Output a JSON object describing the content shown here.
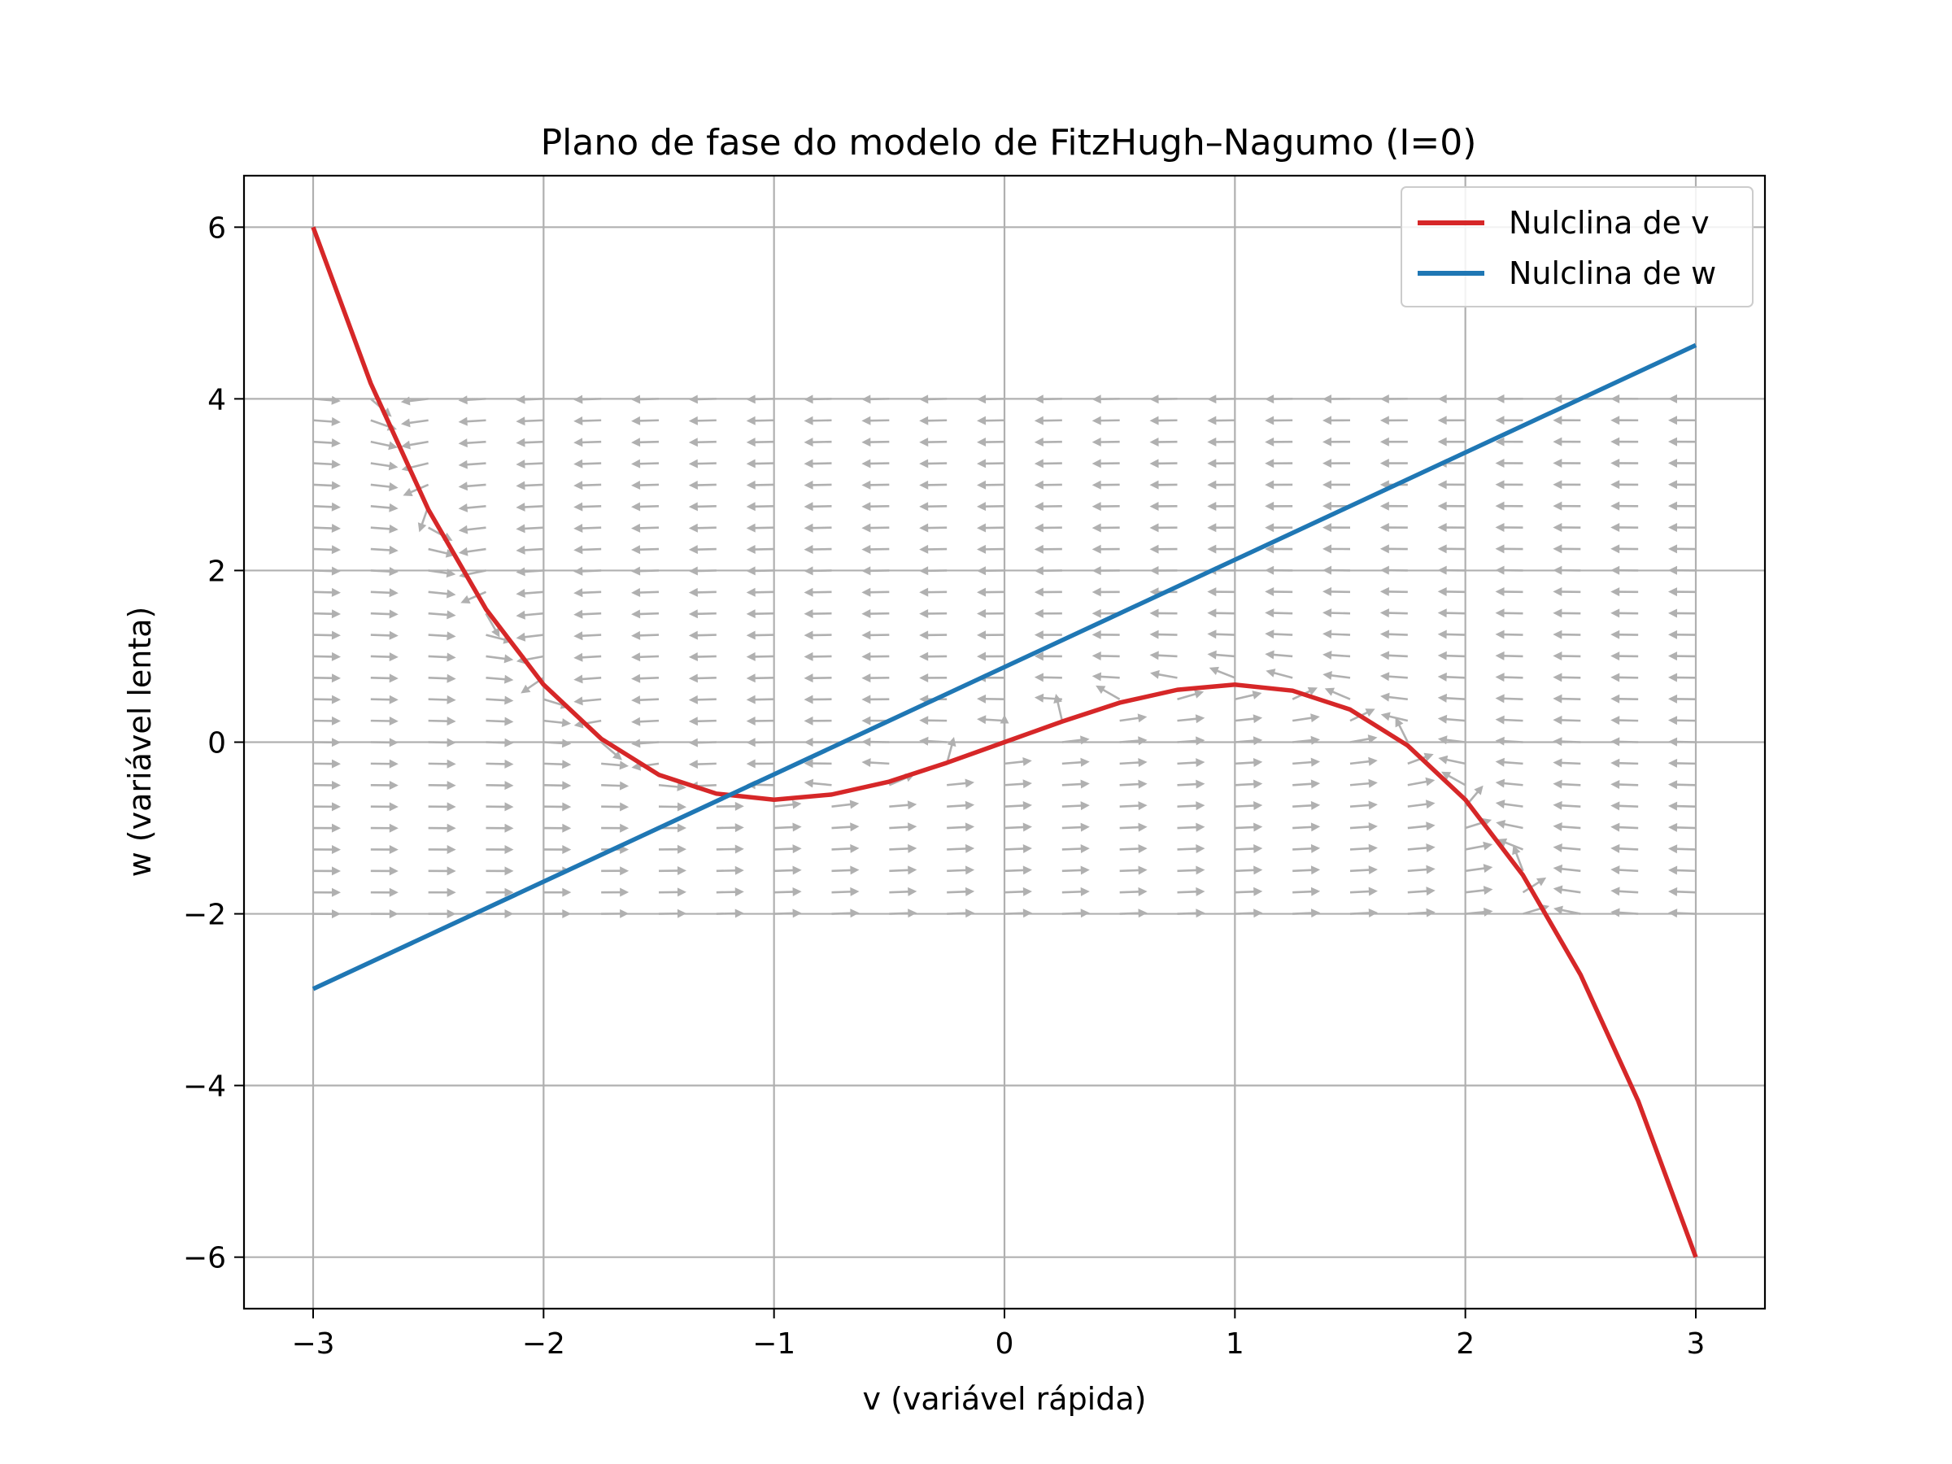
{
  "chart_data": {
    "type": "line",
    "title": "Plano de fase do modelo de FitzHugh–Nagumo (I=0)",
    "xlabel": "v (variável rápida)",
    "ylabel": "w (variável lenta)",
    "xlim": [
      -3.3,
      3.3
    ],
    "ylim": [
      -6.6,
      6.6
    ],
    "grid": true,
    "legend_position": "top-right",
    "x_ticks": [
      -3,
      -2,
      -1,
      0,
      1,
      2,
      3
    ],
    "x_tick_labels": [
      "−3",
      "−2",
      "−1",
      "0",
      "1",
      "2",
      "3"
    ],
    "y_ticks": [
      -6,
      -4,
      -2,
      0,
      2,
      4,
      6
    ],
    "y_tick_labels": [
      "−6",
      "−4",
      "−2",
      "0",
      "2",
      "4",
      "6"
    ],
    "series": [
      {
        "name": "Nulclina de v",
        "color": "#d62728",
        "x": [
          -3.0,
          -2.75,
          -2.5,
          -2.25,
          -2.0,
          -1.75,
          -1.5,
          -1.25,
          -1.0,
          -0.75,
          -0.5,
          -0.25,
          0.0,
          0.25,
          0.5,
          0.75,
          1.0,
          1.25,
          1.5,
          1.75,
          2.0,
          2.25,
          2.5,
          2.75,
          3.0
        ],
        "y": [
          6.0,
          4.18,
          2.71,
          1.55,
          0.67,
          0.04,
          -0.38,
          -0.6,
          -0.67,
          -0.61,
          -0.46,
          -0.24,
          0.0,
          0.24,
          0.46,
          0.61,
          0.67,
          0.6,
          0.38,
          -0.04,
          -0.67,
          -1.55,
          -2.71,
          -4.18,
          -6.0
        ]
      },
      {
        "name": "Nulclina de w",
        "color": "#1f77b4",
        "x": [
          -3.0,
          3.0
        ],
        "y": [
          -2.875,
          4.625
        ]
      }
    ],
    "vector_field": {
      "color": "#b0b0b0",
      "v_range": [
        -3,
        3
      ],
      "v_count": 25,
      "w_range": [
        -2,
        4
      ],
      "w_count": 25,
      "a": 0.7,
      "b": 0.8,
      "I": 0
    }
  }
}
